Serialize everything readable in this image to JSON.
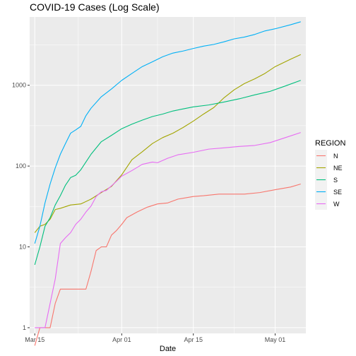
{
  "chart_data": {
    "type": "line",
    "title": "COVID-19 Cases (Log Scale)",
    "xlabel": "Date",
    "ylabel": "",
    "y_scale": "log10",
    "ylim": [
      0.85,
      7000
    ],
    "xlim": [
      "2020-03-14",
      "2020-05-07"
    ],
    "grid": true,
    "panel_background": "#ebebeb",
    "legend": {
      "title": "REGION",
      "position": "right"
    },
    "x_ticks": [
      {
        "date": "2020-03-15",
        "label": "Mar 15"
      },
      {
        "date": "2020-04-01",
        "label": "Apr 01"
      },
      {
        "date": "2020-04-15",
        "label": "Apr 15"
      },
      {
        "date": "2020-05-01",
        "label": "May 01"
      }
    ],
    "y_ticks": [
      {
        "value": 1,
        "label": "1"
      },
      {
        "value": 10,
        "label": "10"
      },
      {
        "value": 100,
        "label": "100"
      },
      {
        "value": 1000,
        "label": "1000"
      }
    ],
    "series": [
      {
        "name": "N",
        "color": "#F8766D",
        "points": [
          [
            "2020-03-15",
            0.6
          ],
          [
            "2020-03-16",
            1
          ],
          [
            "2020-03-17",
            1
          ],
          [
            "2020-03-18",
            1
          ],
          [
            "2020-03-19",
            2
          ],
          [
            "2020-03-20",
            3
          ],
          [
            "2020-03-25",
            3
          ],
          [
            "2020-03-26",
            5
          ],
          [
            "2020-03-27",
            9
          ],
          [
            "2020-03-28",
            10
          ],
          [
            "2020-03-29",
            10
          ],
          [
            "2020-03-30",
            14
          ],
          [
            "2020-03-31",
            16
          ],
          [
            "2020-04-01",
            19
          ],
          [
            "2020-04-02",
            23
          ],
          [
            "2020-04-04",
            27
          ],
          [
            "2020-04-06",
            31
          ],
          [
            "2020-04-08",
            34
          ],
          [
            "2020-04-10",
            35
          ],
          [
            "2020-04-12",
            39
          ],
          [
            "2020-04-15",
            42
          ],
          [
            "2020-04-17",
            43
          ],
          [
            "2020-04-20",
            45
          ],
          [
            "2020-04-25",
            45
          ],
          [
            "2020-04-28",
            47
          ],
          [
            "2020-05-01",
            51
          ],
          [
            "2020-05-04",
            55
          ],
          [
            "2020-05-06",
            60
          ]
        ]
      },
      {
        "name": "NE",
        "color": "#A3A500",
        "points": [
          [
            "2020-03-15",
            15
          ],
          [
            "2020-03-16",
            18
          ],
          [
            "2020-03-17",
            19
          ],
          [
            "2020-03-18",
            22
          ],
          [
            "2020-03-19",
            29
          ],
          [
            "2020-03-20",
            30
          ],
          [
            "2020-03-22",
            33
          ],
          [
            "2020-03-24",
            34
          ],
          [
            "2020-03-26",
            39
          ],
          [
            "2020-03-28",
            47
          ],
          [
            "2020-03-30",
            56
          ],
          [
            "2020-04-01",
            78
          ],
          [
            "2020-04-03",
            120
          ],
          [
            "2020-04-05",
            150
          ],
          [
            "2020-04-07",
            190
          ],
          [
            "2020-04-09",
            225
          ],
          [
            "2020-04-11",
            255
          ],
          [
            "2020-04-13",
            300
          ],
          [
            "2020-04-15",
            360
          ],
          [
            "2020-04-17",
            440
          ],
          [
            "2020-04-19",
            530
          ],
          [
            "2020-04-21",
            700
          ],
          [
            "2020-04-23",
            880
          ],
          [
            "2020-04-25",
            1050
          ],
          [
            "2020-04-27",
            1200
          ],
          [
            "2020-04-29",
            1400
          ],
          [
            "2020-05-01",
            1700
          ],
          [
            "2020-05-04",
            2100
          ],
          [
            "2020-05-06",
            2400
          ]
        ]
      },
      {
        "name": "S",
        "color": "#00BF7D",
        "points": [
          [
            "2020-03-15",
            6
          ],
          [
            "2020-03-16",
            10
          ],
          [
            "2020-03-17",
            18
          ],
          [
            "2020-03-18",
            23
          ],
          [
            "2020-03-19",
            33
          ],
          [
            "2020-03-20",
            43
          ],
          [
            "2020-03-21",
            58
          ],
          [
            "2020-03-22",
            72
          ],
          [
            "2020-03-23",
            77
          ],
          [
            "2020-03-24",
            90
          ],
          [
            "2020-03-26",
            140
          ],
          [
            "2020-03-28",
            200
          ],
          [
            "2020-03-30",
            240
          ],
          [
            "2020-04-01",
            290
          ],
          [
            "2020-04-03",
            330
          ],
          [
            "2020-04-05",
            370
          ],
          [
            "2020-04-07",
            410
          ],
          [
            "2020-04-09",
            440
          ],
          [
            "2020-04-11",
            480
          ],
          [
            "2020-04-13",
            510
          ],
          [
            "2020-04-15",
            540
          ],
          [
            "2020-04-18",
            570
          ],
          [
            "2020-04-21",
            620
          ],
          [
            "2020-04-24",
            680
          ],
          [
            "2020-04-27",
            760
          ],
          [
            "2020-04-30",
            840
          ],
          [
            "2020-05-03",
            980
          ],
          [
            "2020-05-06",
            1150
          ]
        ]
      },
      {
        "name": "SE",
        "color": "#00B0F6",
        "points": [
          [
            "2020-03-15",
            11
          ],
          [
            "2020-03-16",
            18
          ],
          [
            "2020-03-17",
            35
          ],
          [
            "2020-03-18",
            60
          ],
          [
            "2020-03-19",
            95
          ],
          [
            "2020-03-20",
            140
          ],
          [
            "2020-03-21",
            190
          ],
          [
            "2020-03-22",
            255
          ],
          [
            "2020-03-23",
            280
          ],
          [
            "2020-03-24",
            310
          ],
          [
            "2020-03-25",
            420
          ],
          [
            "2020-03-26",
            520
          ],
          [
            "2020-03-28",
            720
          ],
          [
            "2020-03-30",
            900
          ],
          [
            "2020-04-01",
            1150
          ],
          [
            "2020-04-03",
            1400
          ],
          [
            "2020-04-05",
            1700
          ],
          [
            "2020-04-07",
            1950
          ],
          [
            "2020-04-09",
            2250
          ],
          [
            "2020-04-11",
            2500
          ],
          [
            "2020-04-13",
            2650
          ],
          [
            "2020-04-15",
            2850
          ],
          [
            "2020-04-17",
            3050
          ],
          [
            "2020-04-19",
            3200
          ],
          [
            "2020-04-21",
            3450
          ],
          [
            "2020-04-23",
            3750
          ],
          [
            "2020-04-25",
            3950
          ],
          [
            "2020-04-27",
            4250
          ],
          [
            "2020-04-29",
            4700
          ],
          [
            "2020-05-01",
            5000
          ],
          [
            "2020-05-04",
            5600
          ],
          [
            "2020-05-06",
            6100
          ]
        ]
      },
      {
        "name": "W",
        "color": "#E76BF3",
        "points": [
          [
            "2020-03-15",
            1
          ],
          [
            "2020-03-17",
            1
          ],
          [
            "2020-03-18",
            2
          ],
          [
            "2020-03-19",
            4
          ],
          [
            "2020-03-20",
            11
          ],
          [
            "2020-03-21",
            13
          ],
          [
            "2020-03-22",
            15
          ],
          [
            "2020-03-23",
            19
          ],
          [
            "2020-03-24",
            22
          ],
          [
            "2020-03-25",
            27
          ],
          [
            "2020-03-26",
            32
          ],
          [
            "2020-03-27",
            42
          ],
          [
            "2020-03-28",
            48
          ],
          [
            "2020-03-29",
            50
          ],
          [
            "2020-03-31",
            65
          ],
          [
            "2020-04-01",
            75
          ],
          [
            "2020-04-03",
            88
          ],
          [
            "2020-04-05",
            105
          ],
          [
            "2020-04-07",
            112
          ],
          [
            "2020-04-08",
            110
          ],
          [
            "2020-04-10",
            125
          ],
          [
            "2020-04-12",
            138
          ],
          [
            "2020-04-15",
            148
          ],
          [
            "2020-04-18",
            162
          ],
          [
            "2020-04-21",
            168
          ],
          [
            "2020-04-24",
            175
          ],
          [
            "2020-04-27",
            180
          ],
          [
            "2020-04-30",
            195
          ],
          [
            "2020-05-03",
            225
          ],
          [
            "2020-05-06",
            260
          ]
        ]
      }
    ]
  }
}
